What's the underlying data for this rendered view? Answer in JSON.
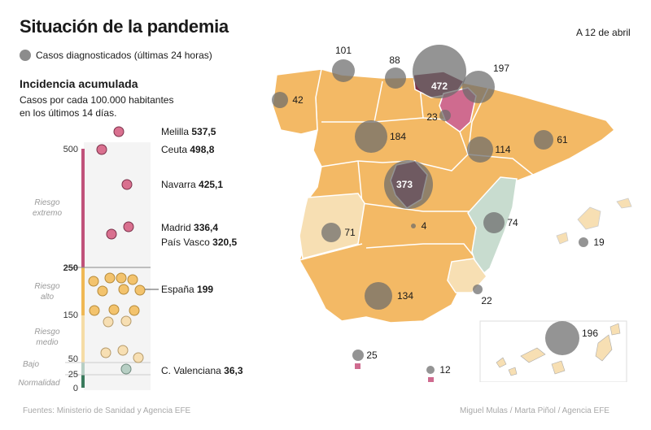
{
  "title": "Situación de la pandemia",
  "date": "A 12 de abril",
  "cases_legend": "Casos diagnosticados (últimas 24 horas)",
  "incidence": {
    "title": "Incidencia acumulada",
    "subtitle_line1": "Casos por cada 100.000 habitantes",
    "subtitle_line2": "en los últimos 14 días."
  },
  "scale": {
    "ticks": [
      "500",
      "250",
      "150",
      "50",
      "25",
      "0"
    ],
    "zones": [
      {
        "line1": "Riesgo",
        "line2": "extremo",
        "color": "#c0527a"
      },
      {
        "line1": "Riesgo",
        "line2": "alto",
        "color": "#f0b854"
      },
      {
        "line1": "Riesgo",
        "line2": "medio",
        "color": "#f5dca5"
      },
      {
        "line1": "Bajo",
        "line2": "",
        "color": "#b7cfc4"
      },
      {
        "line1": "Normalidad",
        "line2": "",
        "color": "#3a7a5c"
      }
    ]
  },
  "chart_data": {
    "type": "scatter",
    "title": "Incidencia acumulada",
    "ylim": [
      0,
      560
    ],
    "labeled_points": [
      {
        "name": "Melilla",
        "value": "537,5"
      },
      {
        "name": "Ceuta",
        "value": "498,8"
      },
      {
        "name": "Navarra",
        "value": "425,1"
      },
      {
        "name": "Madrid",
        "value": "336,4"
      },
      {
        "name": "País Vasco",
        "value": "320,5"
      },
      {
        "name": "España",
        "value": "199"
      },
      {
        "name": "C. Valenciana",
        "value": "36,3"
      }
    ]
  },
  "map": {
    "bubbles": [
      {
        "value": "101"
      },
      {
        "value": "88"
      },
      {
        "value": "472"
      },
      {
        "value": "197"
      },
      {
        "value": "42"
      },
      {
        "value": "23"
      },
      {
        "value": "184"
      },
      {
        "value": "114"
      },
      {
        "value": "61"
      },
      {
        "value": "373"
      },
      {
        "value": "4"
      },
      {
        "value": "74"
      },
      {
        "value": "71"
      },
      {
        "value": "19"
      },
      {
        "value": "134"
      },
      {
        "value": "22"
      },
      {
        "value": "25"
      },
      {
        "value": "12"
      },
      {
        "value": "196"
      }
    ],
    "colors": {
      "extreme": "#7a3049",
      "extreme_light": "#cf6b8f",
      "high": "#f3b965",
      "medium": "#f7dfb3",
      "low": "#c8dccf"
    }
  },
  "footer": {
    "source": "Fuentes: Ministerio de Sanidad y Agencia EFE",
    "credit": "Miguel Mulas / Marta Piñol / Agencia EFE"
  }
}
